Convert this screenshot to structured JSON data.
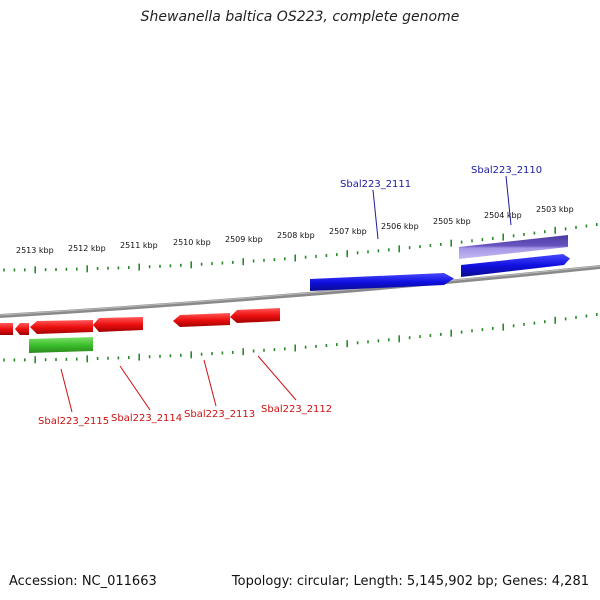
{
  "title": "Shewanella baltica OS223, complete genome",
  "footer": {
    "accession": "Accession: NC_011663",
    "summary": "Topology: circular; Length: 5,145,902 bp; Genes: 4,281"
  },
  "colors": {
    "backbone": "#8a8a8a",
    "tick": "#2a8a2a",
    "forward_gene": "#1010e0",
    "reverse_gene": "#ee0f0f",
    "rna_gene": "#3cbf2c",
    "feature_purple": "#7a5fc9",
    "label_forward": "#1a1aa0",
    "label_reverse": "#cc1111",
    "scale_text": "#111111"
  },
  "scale_labels": [
    "2513 kbp",
    "2512 kbp",
    "2511 kbp",
    "2510 kbp",
    "2509 kbp",
    "2508 kbp",
    "2507 kbp",
    "2506 kbp",
    "2505 kbp",
    "2504 kbp",
    "2503 kbp"
  ],
  "gene_labels": {
    "forward": [
      "Sbal223_2111",
      "Sbal223_2110"
    ],
    "reverse": [
      "Sbal223_2115",
      "Sbal223_2114",
      "Sbal223_2113",
      "Sbal223_2112"
    ]
  }
}
